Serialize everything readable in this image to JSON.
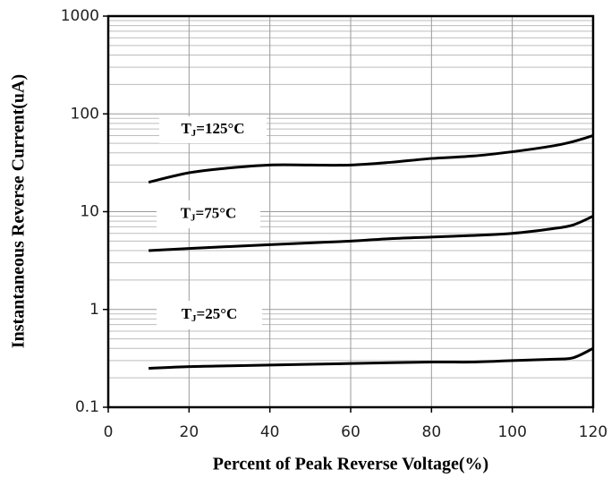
{
  "chart_data": {
    "type": "line",
    "x_label": "Percent of Peak Reverse Voltage(%)",
    "y_label": "Instantaneous Reverse Current(uA)",
    "x": [
      10,
      20,
      30,
      40,
      50,
      60,
      70,
      80,
      90,
      100,
      110,
      115,
      120
    ],
    "series": [
      {
        "name": [
          "T",
          "J",
          "=125°C"
        ],
        "color": "#000000",
        "values": [
          20,
          25,
          28,
          30,
          30,
          30,
          32,
          35,
          37,
          41,
          47,
          52,
          60
        ]
      },
      {
        "name": [
          "T",
          "J",
          "=75°C"
        ],
        "color": "#000000",
        "values": [
          4.0,
          4.2,
          4.4,
          4.6,
          4.8,
          5.0,
          5.3,
          5.5,
          5.7,
          6.0,
          6.7,
          7.3,
          9
        ]
      },
      {
        "name": [
          "T",
          "J",
          "=25°C"
        ],
        "color": "#000000",
        "values": [
          0.25,
          0.26,
          0.265,
          0.27,
          0.275,
          0.28,
          0.285,
          0.29,
          0.29,
          0.3,
          0.31,
          0.32,
          0.4
        ]
      }
    ],
    "xlim": [
      0,
      120
    ],
    "xticks": [
      0,
      20,
      40,
      60,
      80,
      100,
      120
    ],
    "ylim": [
      0.1,
      1000
    ],
    "yticks": [
      0.1,
      1,
      10,
      100,
      1000
    ],
    "log_y": true,
    "grid": true,
    "minor_grid": true
  }
}
